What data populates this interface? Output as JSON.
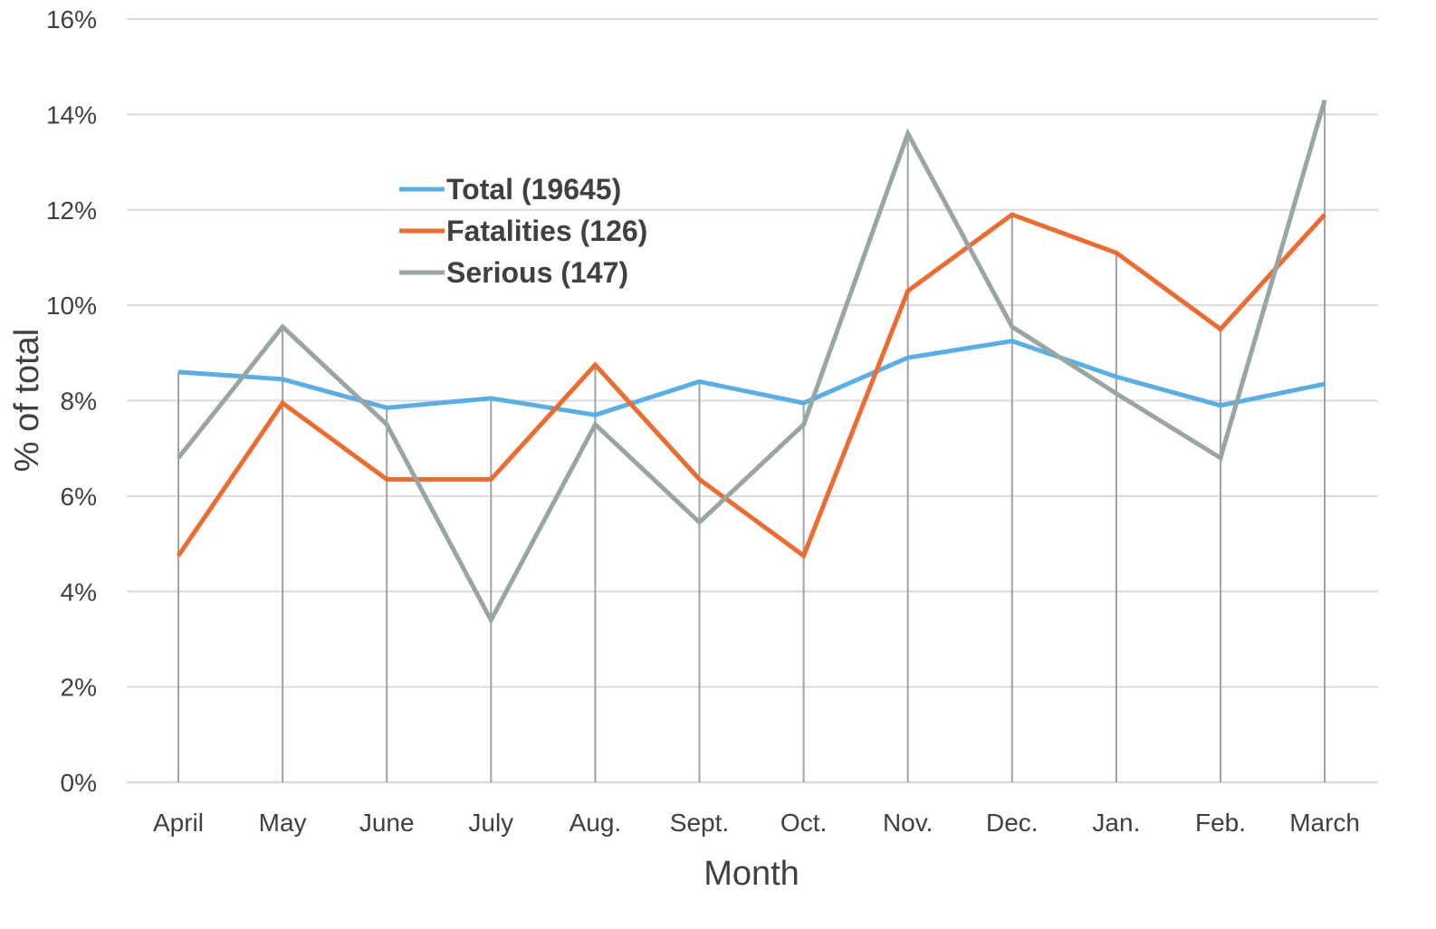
{
  "chart_data": {
    "type": "line",
    "xlabel": "Month",
    "ylabel": "% of total",
    "categories": [
      "April",
      "May",
      "June",
      "July",
      "Aug.",
      "Sept.",
      "Oct.",
      "Nov.",
      "Dec.",
      "Jan.",
      "Feb.",
      "March"
    ],
    "ylim": [
      0,
      16
    ],
    "yticks": [
      0,
      2,
      4,
      6,
      8,
      10,
      12,
      14,
      16
    ],
    "ytick_labels": [
      "0%",
      "2%",
      "4%",
      "6%",
      "8%",
      "10%",
      "12%",
      "14%",
      "16%"
    ],
    "grid": true,
    "drop_lines": true,
    "legend_position": "inside upper-left",
    "series": [
      {
        "name": "Total (19645)",
        "color": "#5aaee6",
        "values": [
          8.6,
          8.45,
          7.85,
          8.05,
          7.7,
          8.4,
          7.95,
          8.9,
          9.25,
          8.5,
          7.9,
          8.35
        ]
      },
      {
        "name": "Fatalities (126)",
        "color": "#ee6a2f",
        "values": [
          4.75,
          7.95,
          6.35,
          6.35,
          8.75,
          6.35,
          4.75,
          10.3,
          11.9,
          11.1,
          9.5,
          11.9
        ]
      },
      {
        "name": "Serious (147)",
        "color": "#98a6a3",
        "values": [
          6.8,
          9.55,
          7.5,
          3.4,
          7.5,
          5.45,
          7.5,
          13.6,
          9.55,
          8.15,
          6.8,
          14.3
        ]
      }
    ],
    "colors": {
      "grid": "#d9d9d9",
      "drop_line": "#98a6a3",
      "axis": "#d9d9d9",
      "text": "#404040"
    }
  }
}
